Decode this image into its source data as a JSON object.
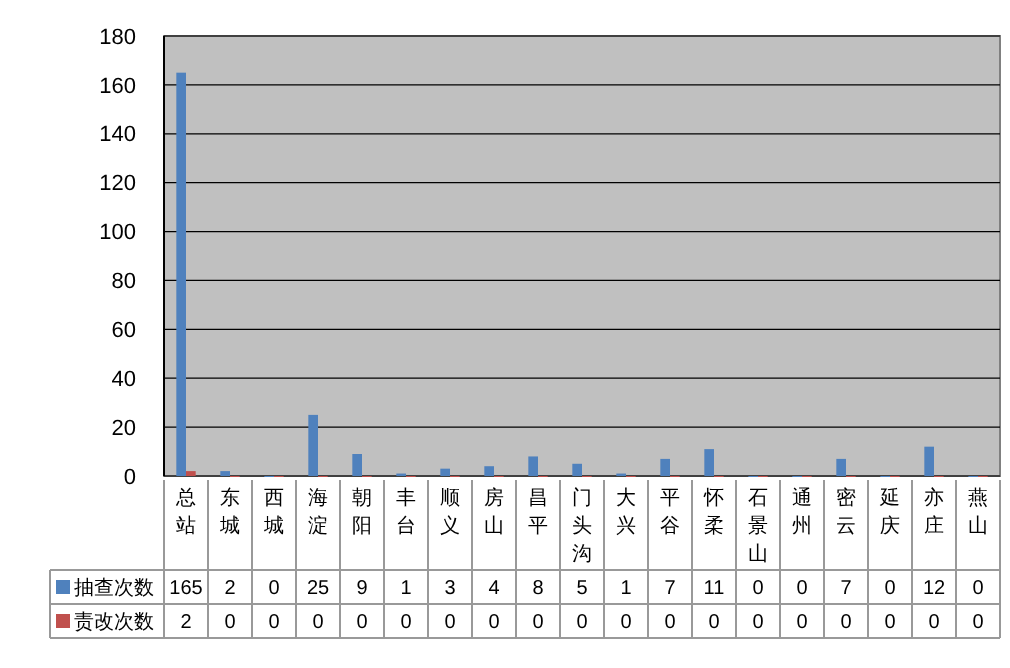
{
  "chart_data": {
    "type": "bar",
    "categories": [
      "总站",
      "东城",
      "西城",
      "海淀",
      "朝阳",
      "丰台",
      "顺义",
      "房山",
      "昌平",
      "门头沟",
      "大兴",
      "平谷",
      "怀柔",
      "石景山",
      "通州",
      "密云",
      "延庆",
      "亦庄",
      "燕山"
    ],
    "series": [
      {
        "name": "抽查次数",
        "color": "#4f81bd",
        "values": [
          165,
          2,
          0,
          25,
          9,
          1,
          3,
          4,
          8,
          5,
          1,
          7,
          11,
          0,
          0,
          7,
          0,
          12,
          0
        ]
      },
      {
        "name": "责改次数",
        "color": "#c0504d",
        "values": [
          2,
          0,
          0,
          0,
          0,
          0,
          0,
          0,
          0,
          0,
          0,
          0,
          0,
          0,
          0,
          0,
          0,
          0,
          0
        ]
      }
    ],
    "ylim": [
      0,
      180
    ],
    "yticks": [
      0,
      20,
      40,
      60,
      80,
      100,
      120,
      140,
      160,
      180
    ],
    "grid": "y",
    "legend": "bottom",
    "data_labels": true
  }
}
